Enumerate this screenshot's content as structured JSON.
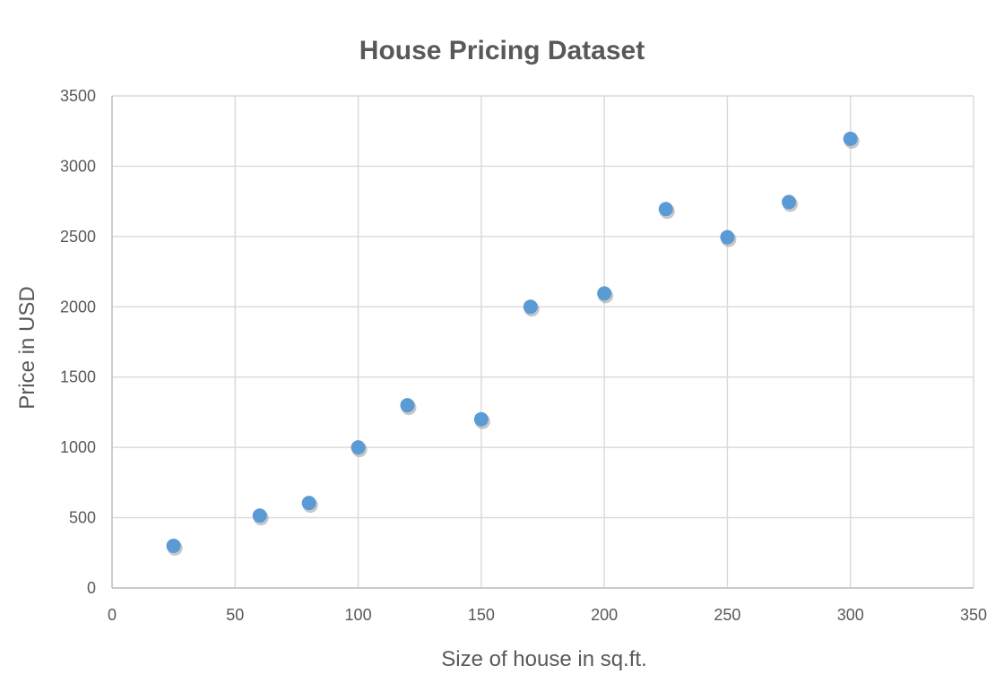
{
  "chart_data": {
    "type": "scatter",
    "title": "House Pricing Dataset",
    "xlabel": "Size of house in sq.ft.",
    "ylabel": "Price in USD",
    "xlim": [
      0,
      350
    ],
    "ylim": [
      0,
      3500
    ],
    "x_ticks": [
      0,
      50,
      100,
      150,
      200,
      250,
      300,
      350
    ],
    "y_ticks": [
      0,
      500,
      1000,
      1500,
      2000,
      2500,
      3000,
      3500
    ],
    "grid": true,
    "legend": "none",
    "series": [
      {
        "color": "#5b9bd5",
        "points": [
          {
            "x": 25,
            "y": 300
          },
          {
            "x": 60,
            "y": 515
          },
          {
            "x": 80,
            "y": 605
          },
          {
            "x": 100,
            "y": 1000
          },
          {
            "x": 120,
            "y": 1300
          },
          {
            "x": 150,
            "y": 1200
          },
          {
            "x": 170,
            "y": 2000
          },
          {
            "x": 200,
            "y": 2095
          },
          {
            "x": 225,
            "y": 2695
          },
          {
            "x": 250,
            "y": 2495
          },
          {
            "x": 275,
            "y": 2745
          },
          {
            "x": 300,
            "y": 3195
          }
        ]
      }
    ]
  }
}
